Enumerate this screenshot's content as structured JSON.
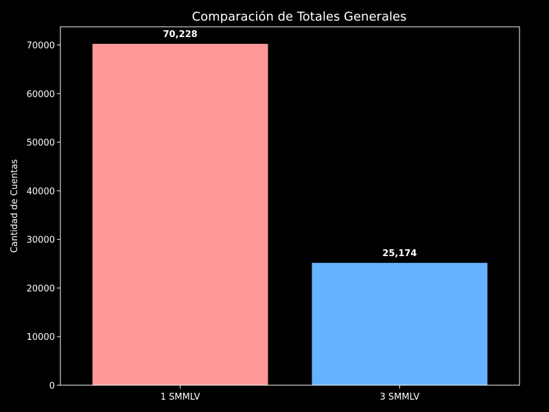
{
  "chart_data": {
    "type": "bar",
    "title": "Comparación de Totales Generales",
    "xlabel": "",
    "ylabel": "Cantidad de Cuentas",
    "categories": [
      "1 SMMLV",
      "3 SMMLV"
    ],
    "values": [
      70228,
      25174
    ],
    "value_labels": [
      "70,228",
      "25,174"
    ],
    "colors": [
      "#ff9999",
      "#66b3ff"
    ],
    "ylim": [
      0,
      73740
    ],
    "yticks": [
      0,
      10000,
      20000,
      30000,
      40000,
      50000,
      60000,
      70000
    ],
    "ytick_labels": [
      "0",
      "10000",
      "20000",
      "30000",
      "40000",
      "50000",
      "60000",
      "70000"
    ],
    "grid": false,
    "background": "#000000",
    "foreground": "#ffffff"
  }
}
